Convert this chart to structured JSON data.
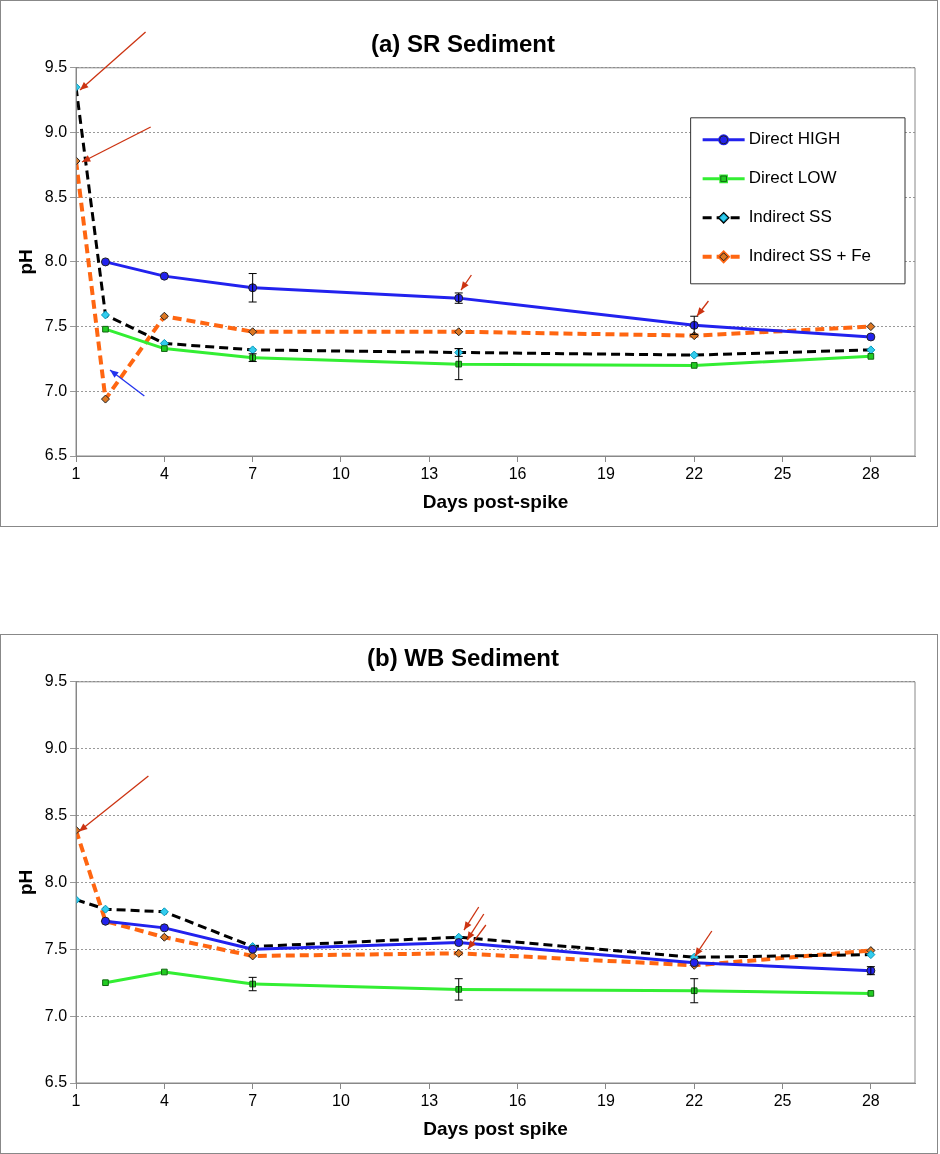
{
  "chart_data": [
    {
      "type": "line",
      "title": "(a) SR Sediment",
      "xlabel": "Days post-spike",
      "ylabel": "pH",
      "xlim": [
        1,
        29.5
      ],
      "xticks": [
        1,
        4,
        7,
        10,
        13,
        16,
        19,
        22,
        25,
        28
      ],
      "ylim": [
        6.5,
        9.5
      ],
      "yticks": [
        {
          "value": 6.5,
          "label": "6.5"
        },
        {
          "value": 7,
          "label": "7.0"
        },
        {
          "value": 7.5,
          "label": "7.5"
        },
        {
          "value": 8,
          "label": "8.0"
        },
        {
          "value": 8.5,
          "label": "8.5"
        },
        {
          "value": 9,
          "label": "9.0"
        },
        {
          "value": 9.5,
          "label": "9.5"
        }
      ],
      "grid": "y",
      "legend": "top right",
      "series": [
        {
          "name": "Direct HIGH",
          "color": "#2222ee",
          "marker": "circle",
          "line_style": "solid",
          "x": [
            2,
            4,
            7,
            14,
            22,
            28
          ],
          "values": [
            8.0,
            7.89,
            7.8,
            7.72,
            7.51,
            7.42
          ],
          "errors": [
            null,
            null,
            0.11,
            0.04,
            0.07,
            null
          ]
        },
        {
          "name": "Direct LOW",
          "color": "#33ee33",
          "marker": "square",
          "line_style": "solid",
          "x": [
            2,
            4,
            7,
            14,
            22,
            28
          ],
          "values": [
            7.48,
            7.33,
            7.26,
            7.21,
            7.2,
            7.27
          ],
          "errors": [
            null,
            null,
            0.03,
            0.12,
            null,
            null
          ]
        },
        {
          "name": "Indirect SS",
          "color": "#000000",
          "marker": "diamond",
          "line_style": "dashed",
          "x": [
            1,
            2,
            4,
            7,
            14,
            22,
            28
          ],
          "values": [
            9.35,
            7.59,
            7.37,
            7.32,
            7.3,
            7.28,
            7.32
          ],
          "errors": [
            null,
            null,
            null,
            null,
            0.03,
            null,
            null
          ]
        },
        {
          "name": "Indirect SS + Fe",
          "color": "#ff6611",
          "marker": "diamond",
          "line_style": "dashed",
          "x": [
            1,
            2,
            4,
            7,
            14,
            22,
            28
          ],
          "values": [
            8.78,
            6.94,
            7.58,
            7.46,
            7.46,
            7.43,
            7.5
          ]
        }
      ]
    },
    {
      "type": "line",
      "title": "(b) WB Sediment",
      "xlabel": "Days post spike",
      "ylabel": "pH",
      "xlim": [
        1,
        29.5
      ],
      "xticks": [
        1,
        4,
        7,
        10,
        13,
        16,
        19,
        22,
        25,
        28
      ],
      "ylim": [
        6.5,
        9.5
      ],
      "yticks": [
        {
          "value": 6.5,
          "label": "6.5"
        },
        {
          "value": 7,
          "label": "7.0"
        },
        {
          "value": 7.5,
          "label": "7.5"
        },
        {
          "value": 8,
          "label": "8.0"
        },
        {
          "value": 8.5,
          "label": "8.5"
        },
        {
          "value": 9,
          "label": "9.0"
        },
        {
          "value": 9.5,
          "label": "9.5"
        }
      ],
      "grid": "y",
      "series": [
        {
          "color": "#2222ee",
          "marker": "circle",
          "line_style": "solid",
          "x": [
            2,
            4,
            7,
            14,
            22,
            28
          ],
          "values": [
            7.71,
            7.66,
            7.5,
            7.55,
            7.4,
            7.34
          ],
          "errors": [
            null,
            null,
            null,
            null,
            null,
            0.03
          ]
        },
        {
          "color": "#33ee33",
          "marker": "square",
          "line_style": "solid",
          "x": [
            2,
            4,
            7,
            14,
            22,
            28
          ],
          "values": [
            7.25,
            7.33,
            7.24,
            7.2,
            7.19,
            7.17
          ],
          "errors": [
            null,
            null,
            0.05,
            0.08,
            0.09,
            null
          ]
        },
        {
          "color": "#000000",
          "marker": "diamond",
          "line_style": "dashed",
          "x": [
            1,
            2,
            4,
            7,
            14,
            22,
            28
          ],
          "values": [
            7.87,
            7.8,
            7.78,
            7.52,
            7.59,
            7.44,
            7.46
          ]
        },
        {
          "color": "#ff6611",
          "marker": "diamond",
          "line_style": "dashed",
          "x": [
            1,
            2,
            4,
            7,
            14,
            22,
            28
          ],
          "values": [
            8.39,
            7.71,
            7.59,
            7.45,
            7.47,
            7.38,
            7.49
          ]
        }
      ]
    }
  ]
}
